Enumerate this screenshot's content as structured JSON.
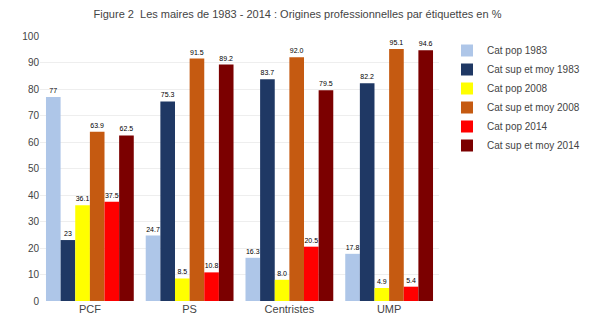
{
  "chart_data": {
    "type": "bar",
    "title": "Figure 2  Les maires de 1983 - 2014 : Origines professionnelles par étiquettes en %",
    "categories": [
      "PCF",
      "PS",
      "Centristes",
      "UMP"
    ],
    "series": [
      {
        "name": "Cat pop 1983",
        "color": "#aec6e8",
        "values": [
          77,
          24.7,
          16.3,
          17.8
        ],
        "value_labels": [
          "77",
          "24.7",
          "16.3",
          "17.8"
        ]
      },
      {
        "name": "Cat sup et moy 1983",
        "color": "#1f3864",
        "values": [
          23,
          75.3,
          83.7,
          82.2
        ],
        "value_labels": [
          "23",
          "75.3",
          "83.7",
          "82.2"
        ]
      },
      {
        "name": "Cat pop 2008",
        "color": "#ffff00",
        "values": [
          36.1,
          8.5,
          8.0,
          4.9
        ],
        "value_labels": [
          "36.1",
          "8.5",
          "8.0",
          "4.9"
        ]
      },
      {
        "name": "Cat sup et moy 2008",
        "color": "#c55a11",
        "values": [
          63.9,
          91.5,
          92.0,
          95.1
        ],
        "value_labels": [
          "63.9",
          "91.5",
          "92.0",
          "95.1"
        ]
      },
      {
        "name": "Cat pop 2014",
        "color": "#ff0000",
        "values": [
          37.5,
          10.8,
          20.5,
          5.4
        ],
        "value_labels": [
          "37.5",
          "10.8",
          "20.5",
          "5.4"
        ]
      },
      {
        "name": "Cat sup et moy 2014",
        "color": "#7b0000",
        "values": [
          62.5,
          89.2,
          79.5,
          94.6
        ],
        "value_labels": [
          "62.5",
          "89.2",
          "79.5",
          "94.6"
        ]
      }
    ],
    "ylim": [
      0,
      100
    ],
    "yticks": [
      0,
      10,
      20,
      30,
      40,
      50,
      60,
      70,
      80,
      90,
      100
    ],
    "grid": true,
    "legend": "right",
    "data_labels": true
  }
}
